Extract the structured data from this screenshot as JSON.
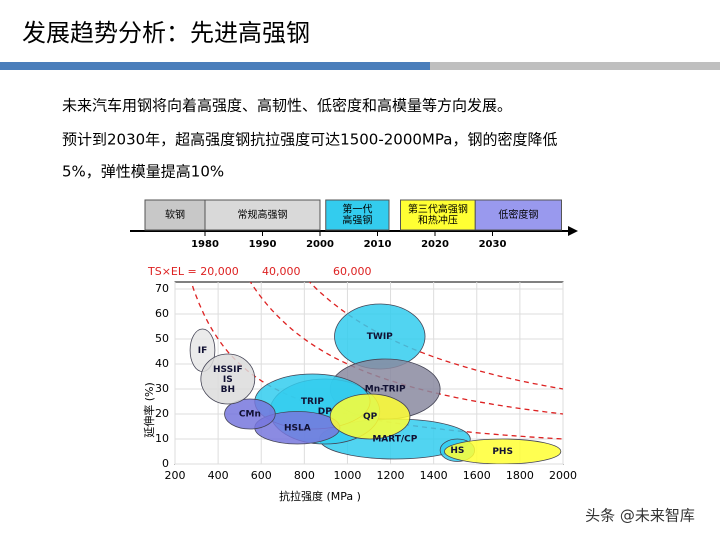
{
  "header": {
    "title": "发展趋势分析：先进高强钢"
  },
  "body": {
    "lines": [
      "未来汽车用钢将向着高强度、高韧性、低密度和高模量等方向发展。",
      "预计到2030年，超高强度钢抗拉强度可达1500-2000MPa，钢的密度降低",
      "5%，弹性模量提高10%"
    ]
  },
  "timeline": {
    "ticks": [
      1980,
      1990,
      2000,
      2010,
      2020,
      2030
    ],
    "segments": [
      {
        "label": "软钢",
        "start": 1969,
        "end": 1980,
        "color": "#c8c8c8"
      },
      {
        "label": "常规高强钢",
        "start": 1980,
        "end": 2000,
        "color": "#d9d9d9"
      },
      {
        "label": "第一代\n高强钢",
        "start": 2001,
        "end": 2012,
        "color": "#33ccee"
      },
      {
        "label": "第三代高强钢\n和热冲压",
        "start": 2014,
        "end": 2027,
        "color": "#ffff33"
      },
      {
        "label": "低密度钢",
        "start": 2027,
        "end": 2042,
        "color": "#9999ee"
      }
    ]
  },
  "chart_data": {
    "type": "region",
    "x_label": "抗拉强度 (MPa )",
    "y_label": "延伸率 (%)",
    "xlim": [
      200,
      2000
    ],
    "xticks": [
      200,
      400,
      600,
      800,
      1000,
      1200,
      1400,
      1600,
      1800,
      2000
    ],
    "ylim": [
      0,
      70
    ],
    "yticks": [
      0,
      10,
      20,
      30,
      40,
      50,
      60,
      70
    ],
    "curves": [
      {
        "value": 20000,
        "label": "TS×EL = 20,000"
      },
      {
        "value": 40000,
        "label": "40,000"
      },
      {
        "value": 60000,
        "label": "60,000"
      }
    ],
    "curve_color": "#dd2222",
    "regions": [
      {
        "label": "MART/CP",
        "x": [
          870,
          1570
        ],
        "y": [
          2,
          18
        ],
        "color": "#33ccee"
      },
      {
        "label": "TWIP",
        "x": [
          940,
          1360
        ],
        "y": [
          38,
          64
        ],
        "color": "#33ccee"
      },
      {
        "label": "Mn-TRIP",
        "x": [
          920,
          1430
        ],
        "y": [
          18,
          42
        ],
        "color": "#8a8aa0"
      },
      {
        "label": "DP",
        "x": [
          640,
          1150
        ],
        "y": [
          8,
          34
        ],
        "color": "#33ccee"
      },
      {
        "label": "TRIP",
        "x": [
          570,
          1105
        ],
        "y": [
          14,
          36
        ],
        "color": "#33ccee"
      },
      {
        "label": "HSLA",
        "x": [
          570,
          965
        ],
        "y": [
          8,
          21
        ],
        "color": "#7777dd"
      },
      {
        "label": "CMn",
        "x": [
          430,
          665
        ],
        "y": [
          14,
          26
        ],
        "color": "#7777dd"
      },
      {
        "label": "IF",
        "x": [
          270,
          385
        ],
        "y": [
          37,
          54
        ],
        "color": "#e8e8e8"
      },
      {
        "label": "HSSIF\nIS\nBH",
        "x": [
          320,
          570
        ],
        "y": [
          24,
          44
        ],
        "color": "#dcdcdc"
      },
      {
        "label": "QP",
        "x": [
          920,
          1290
        ],
        "y": [
          10,
          28
        ],
        "color": "#ffff33"
      },
      {
        "label": "HS",
        "x": [
          1430,
          1590
        ],
        "y": [
          1,
          10
        ],
        "color": "#33ccee"
      },
      {
        "label": "PHS",
        "x": [
          1450,
          1990
        ],
        "y": [
          0,
          10
        ],
        "color": "#ffff33"
      }
    ]
  },
  "watermark": "头条 @未来智库"
}
